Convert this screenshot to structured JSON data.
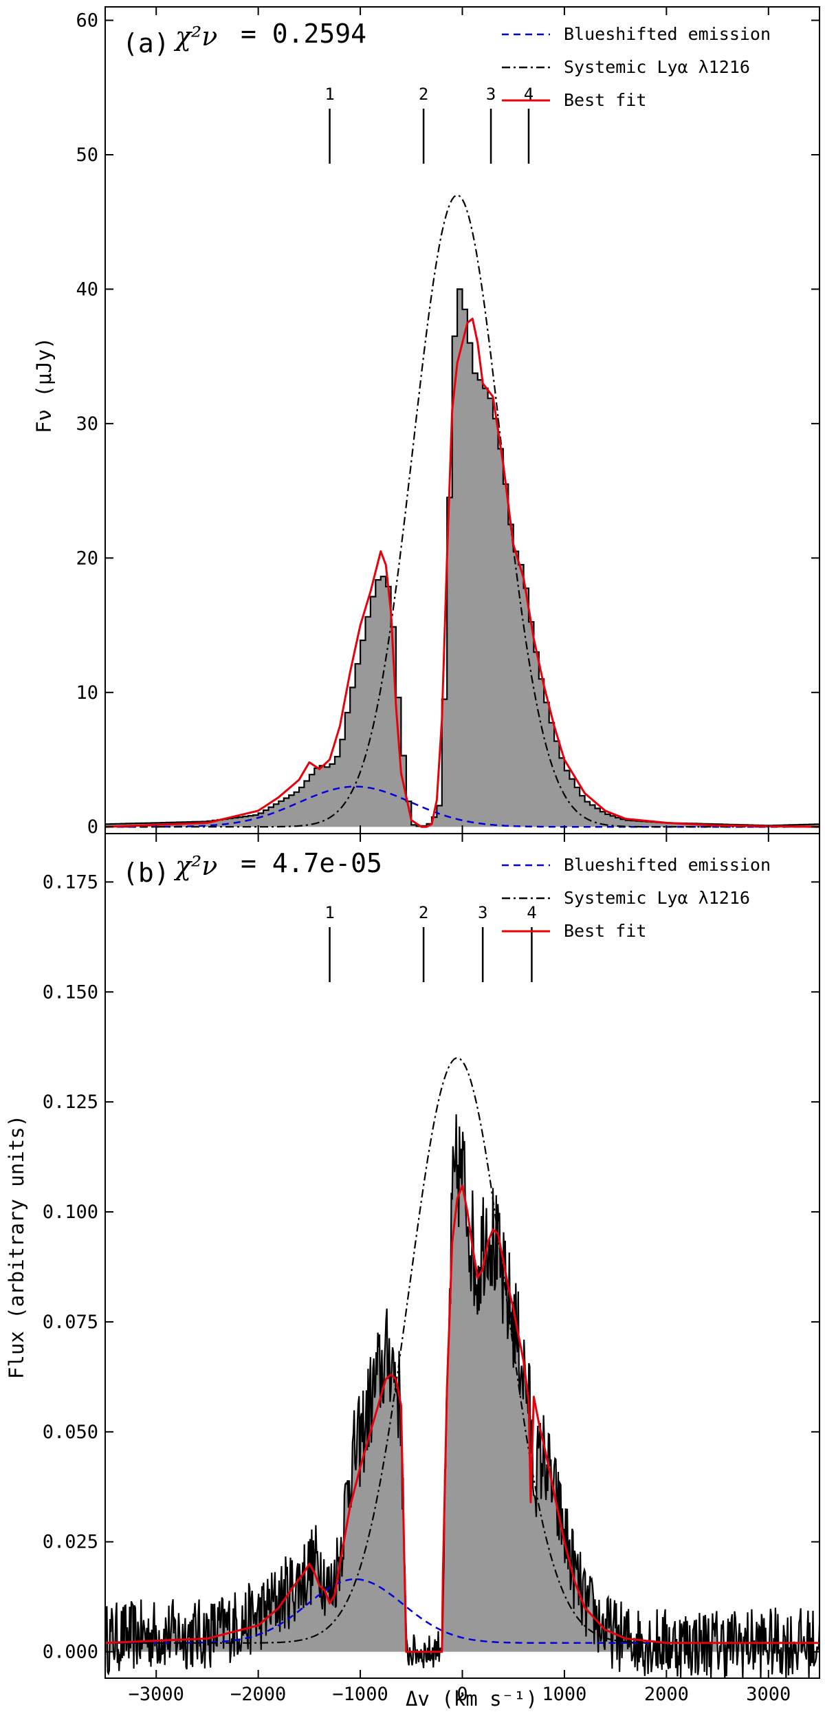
{
  "chart_data": [
    {
      "type": "line",
      "panel": "(a)",
      "panel_label": "(a)",
      "chi_label": "χ²ν",
      "chi_value": "= 0.2594",
      "ylabel": "Fν (μJy)",
      "xlabel": "",
      "xlim": [
        -3500,
        3500
      ],
      "ylim": [
        -0.5,
        61
      ],
      "yticks": [
        0,
        10,
        20,
        30,
        40,
        50,
        60
      ],
      "xticks": [
        -3000,
        -2000,
        -1000,
        0,
        1000,
        2000,
        3000
      ],
      "legend": [
        "Blueshifted emission",
        "Systemic Lyα λ1216",
        "Best fit"
      ],
      "markers": [
        {
          "label": "1",
          "x": -1300
        },
        {
          "label": "2",
          "x": -380
        },
        {
          "label": "3",
          "x": 280
        },
        {
          "label": "4",
          "x": 650
        }
      ],
      "data": {
        "x": [
          -3500,
          -3000,
          -2500,
          -2000,
          -1800,
          -1600,
          -1400,
          -1300,
          -1200,
          -1100,
          -1000,
          -900,
          -800,
          -700,
          -600,
          -500,
          -400,
          -300,
          -200,
          -100,
          -50,
          0,
          50,
          100,
          150,
          200,
          300,
          400,
          500,
          600,
          700,
          800,
          900,
          1000,
          1200,
          1400,
          1600,
          2000,
          2500,
          3000,
          3500
        ],
        "y": [
          0.2,
          0.3,
          0.4,
          0.9,
          1.8,
          2.7,
          4.6,
          4.4,
          5.5,
          9.5,
          13.0,
          16.5,
          19.0,
          17.5,
          7.0,
          0.2,
          0.0,
          0.3,
          2.0,
          32.0,
          41.0,
          39.0,
          38.0,
          34.0,
          33.5,
          33.0,
          31.5,
          27.0,
          21.0,
          19.0,
          14.0,
          10.0,
          7.0,
          4.5,
          2.0,
          1.0,
          0.5,
          0.3,
          0.2,
          0.1,
          0.2
        ]
      },
      "blueshifted": {
        "amplitude": 3.0,
        "center": -1050,
        "sigma": 550
      },
      "systemic": {
        "amplitude": 47.0,
        "center": -50,
        "sigma": 430
      },
      "best_fit": {
        "x": [
          -3500,
          -2500,
          -2000,
          -1800,
          -1600,
          -1500,
          -1400,
          -1300,
          -1200,
          -1100,
          -1000,
          -900,
          -800,
          -750,
          -700,
          -650,
          -600,
          -500,
          -400,
          -350,
          -300,
          -250,
          -200,
          -150,
          -100,
          -50,
          0,
          50,
          100,
          150,
          200,
          300,
          400,
          500,
          600,
          700,
          800,
          900,
          1000,
          1200,
          1400,
          1600,
          2000,
          2500,
          3500
        ],
        "y": [
          0.0,
          0.3,
          1.2,
          2.2,
          3.5,
          4.8,
          4.3,
          5.0,
          7.5,
          11.5,
          15.0,
          17.5,
          20.5,
          19.5,
          16.0,
          9.0,
          4.0,
          0.5,
          0.0,
          0.0,
          0.2,
          2.0,
          8.0,
          20.0,
          31.0,
          34.5,
          36.0,
          37.5,
          37.8,
          36.0,
          33.0,
          32.0,
          27.0,
          21.0,
          18.5,
          14.0,
          10.5,
          7.5,
          5.0,
          2.5,
          1.2,
          0.6,
          0.3,
          0.1,
          0.0
        ]
      }
    },
    {
      "type": "line",
      "panel": "(b)",
      "panel_label": "(b)",
      "chi_label": "χ²ν",
      "chi_value": "= 4.7e-05",
      "ylabel": "Flux (arbitrary units)",
      "xlabel": "Δv (km s⁻¹)",
      "xlim": [
        -3500,
        3500
      ],
      "ylim": [
        -0.006,
        0.186
      ],
      "yticks": [
        0.0,
        0.025,
        0.05,
        0.075,
        0.1,
        0.125,
        0.15,
        0.175
      ],
      "ytick_labels": [
        "0.000",
        "0.025",
        "0.050",
        "0.075",
        "0.100",
        "0.125",
        "0.150",
        "0.175"
      ],
      "xticks": [
        -3000,
        -2000,
        -1000,
        0,
        1000,
        2000,
        3000
      ],
      "legend": [
        "Blueshifted emission",
        "Systemic Lyα λ1216",
        "Best fit"
      ],
      "markers": [
        {
          "label": "1",
          "x": -1300
        },
        {
          "label": "2",
          "x": -380
        },
        {
          "label": "3",
          "x": 200
        },
        {
          "label": "4",
          "x": 680
        }
      ],
      "data": {
        "x": [
          -3500,
          -3000,
          -2500,
          -2000,
          -1800,
          -1600,
          -1500,
          -1400,
          -1300,
          -1200,
          -1100,
          -1000,
          -900,
          -800,
          -700,
          -650,
          -600,
          -550,
          -500,
          -400,
          -300,
          -200,
          -150,
          -100,
          -50,
          0,
          50,
          100,
          150,
          200,
          250,
          300,
          350,
          400,
          500,
          600,
          650,
          700,
          800,
          900,
          1000,
          1100,
          1200,
          1400,
          1600,
          2000,
          2500,
          3000,
          3500
        ],
        "y": [
          0.003,
          0.004,
          0.004,
          0.008,
          0.012,
          0.016,
          0.019,
          0.021,
          0.013,
          0.022,
          0.042,
          0.048,
          0.057,
          0.064,
          0.068,
          0.062,
          0.055,
          0.0,
          0.0,
          0.0,
          0.0,
          0.002,
          0.055,
          0.1,
          0.11,
          0.108,
          0.102,
          0.092,
          0.086,
          0.094,
          0.098,
          0.094,
          0.089,
          0.083,
          0.076,
          0.064,
          0.058,
          0.04,
          0.045,
          0.036,
          0.027,
          0.018,
          0.011,
          0.005,
          0.003,
          0.002,
          0.002,
          0.002,
          0.002
        ]
      },
      "blueshifted": {
        "amplitude": 0.0145,
        "center": -1050,
        "sigma": 470,
        "baseline": 0.002
      },
      "systemic": {
        "amplitude": 0.133,
        "center": -50,
        "sigma": 470,
        "baseline": 0.002
      },
      "best_fit": {
        "x": [
          -3500,
          -2500,
          -2000,
          -1800,
          -1650,
          -1550,
          -1500,
          -1450,
          -1400,
          -1350,
          -1300,
          -1250,
          -1200,
          -1100,
          -1000,
          -900,
          -800,
          -750,
          -700,
          -650,
          -600,
          -550,
          -500,
          -400,
          -300,
          -200,
          -190,
          -150,
          -100,
          -50,
          0,
          50,
          100,
          150,
          200,
          250,
          300,
          350,
          400,
          450,
          500,
          550,
          600,
          650,
          670,
          700,
          750,
          800,
          900,
          1000,
          1100,
          1200,
          1400,
          1600,
          2000,
          3500
        ],
        "y": [
          0.002,
          0.003,
          0.006,
          0.01,
          0.015,
          0.018,
          0.02,
          0.018,
          0.015,
          0.014,
          0.011,
          0.013,
          0.02,
          0.033,
          0.042,
          0.05,
          0.058,
          0.062,
          0.063,
          0.062,
          0.056,
          0.0,
          0.0,
          0.0,
          0.0,
          0.0,
          0.018,
          0.06,
          0.093,
          0.103,
          0.106,
          0.1,
          0.092,
          0.085,
          0.087,
          0.093,
          0.096,
          0.095,
          0.089,
          0.083,
          0.078,
          0.072,
          0.066,
          0.057,
          0.034,
          0.058,
          0.052,
          0.047,
          0.036,
          0.025,
          0.016,
          0.01,
          0.005,
          0.003,
          0.002,
          0.002
        ]
      }
    }
  ],
  "colors": {
    "blueshifted": "#0000dd",
    "systemic": "#000000",
    "best_fit": "#e8000b",
    "fill": "#999999",
    "axis": "#000000"
  }
}
